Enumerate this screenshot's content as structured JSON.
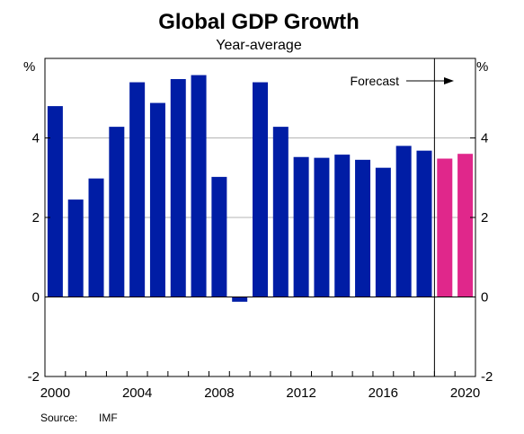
{
  "chart_data": {
    "type": "bar",
    "title": "Global GDP Growth",
    "subtitle": "Year-average",
    "unit_left": "%",
    "unit_right": "%",
    "ylim": [
      -2,
      6
    ],
    "yticks": [
      -2,
      0,
      2,
      4
    ],
    "xticks": [
      2000,
      2004,
      2008,
      2012,
      2016,
      2020
    ],
    "x": [
      2000,
      2001,
      2002,
      2003,
      2004,
      2005,
      2006,
      2007,
      2008,
      2009,
      2010,
      2011,
      2012,
      2013,
      2014,
      2015,
      2016,
      2017,
      2018,
      2019,
      2020
    ],
    "series": [
      {
        "values": [
          4.8,
          2.45,
          2.98,
          4.28,
          5.4,
          4.88,
          5.48,
          5.58,
          3.02,
          -0.12,
          5.4,
          4.28,
          3.52,
          3.5,
          3.58,
          3.45,
          3.25,
          3.8,
          3.68,
          null,
          null
        ],
        "color": "#001da5"
      },
      {
        "values": [
          null,
          null,
          null,
          null,
          null,
          null,
          null,
          null,
          null,
          null,
          null,
          null,
          null,
          null,
          null,
          null,
          null,
          null,
          null,
          3.48,
          3.6
        ],
        "color": "#e0278b"
      }
    ],
    "forecast_divider": 2018.5,
    "annotation": "Forecast",
    "source_label": "Source:",
    "source_value": "IMF",
    "grid": true,
    "colors": {
      "history": "#001da5",
      "forecast": "#e0278b",
      "grid": "#b4b4b4"
    }
  }
}
